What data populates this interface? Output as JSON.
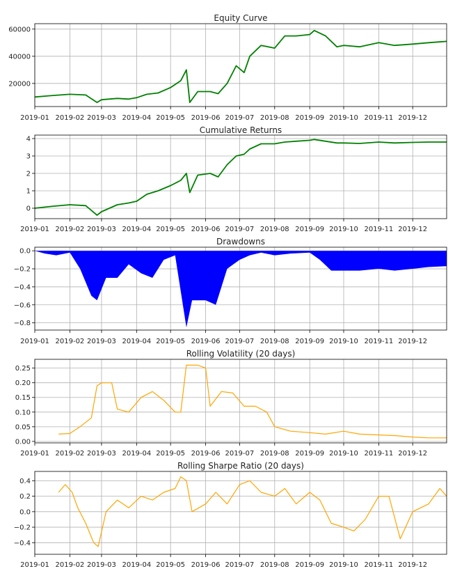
{
  "chart_data": [
    {
      "type": "line",
      "title": "Equity Curve",
      "xlabel": "",
      "ylabel": "",
      "x_ticks": [
        "2019-01",
        "2019-02",
        "2019-03",
        "2019-04",
        "2019-05",
        "2019-06",
        "2019-07",
        "2019-08",
        "2019-09",
        "2019-10",
        "2019-11",
        "2019-12"
      ],
      "y_ticks": [
        "20000",
        "40000",
        "60000"
      ],
      "xlim": [
        "2019-01-01",
        "2019-12-31"
      ],
      "ylim": [
        3000,
        64000
      ],
      "grid": true,
      "color": "#008000",
      "series": [
        {
          "x": [
            "2019-01-01",
            "2019-01-15",
            "2019-02-01",
            "2019-02-15",
            "2019-02-25",
            "2019-03-01",
            "2019-03-15",
            "2019-03-25",
            "2019-04-01",
            "2019-04-10",
            "2019-04-20",
            "2019-05-01",
            "2019-05-10",
            "2019-05-15",
            "2019-05-18",
            "2019-05-25",
            "2019-06-05",
            "2019-06-12",
            "2019-06-20",
            "2019-06-28",
            "2019-07-05",
            "2019-07-10",
            "2019-07-20",
            "2019-08-01",
            "2019-08-10",
            "2019-08-20",
            "2019-09-01",
            "2019-09-05",
            "2019-09-15",
            "2019-09-25",
            "2019-10-01",
            "2019-10-15",
            "2019-11-01",
            "2019-11-15",
            "2019-12-01",
            "2019-12-15",
            "2019-12-31"
          ],
          "y": [
            10000,
            11000,
            12000,
            11500,
            6000,
            8000,
            9000,
            8500,
            9500,
            12000,
            13000,
            17000,
            22000,
            30000,
            6000,
            14000,
            14000,
            12500,
            20000,
            33000,
            28000,
            40000,
            48000,
            46000,
            55000,
            55000,
            56000,
            59000,
            55000,
            47000,
            48000,
            47000,
            50000,
            48000,
            49000,
            50000,
            51000
          ]
        }
      ]
    },
    {
      "type": "line",
      "title": "Cumulative Returns",
      "xlabel": "",
      "ylabel": "",
      "x_ticks": [
        "2019-01",
        "2019-02",
        "2019-03",
        "2019-04",
        "2019-05",
        "2019-06",
        "2019-07",
        "2019-08",
        "2019-09",
        "2019-10",
        "2019-11",
        "2019-12"
      ],
      "y_ticks": [
        "0",
        "1",
        "2",
        "3",
        "4"
      ],
      "xlim": [
        "2019-01-01",
        "2019-12-31"
      ],
      "ylim": [
        -0.6,
        4.2
      ],
      "grid": true,
      "color": "#008000",
      "series": [
        {
          "x": [
            "2019-01-01",
            "2019-01-15",
            "2019-02-01",
            "2019-02-15",
            "2019-02-25",
            "2019-03-01",
            "2019-03-15",
            "2019-03-25",
            "2019-04-01",
            "2019-04-10",
            "2019-04-20",
            "2019-05-01",
            "2019-05-10",
            "2019-05-15",
            "2019-05-18",
            "2019-05-25",
            "2019-06-05",
            "2019-06-12",
            "2019-06-20",
            "2019-06-28",
            "2019-07-05",
            "2019-07-10",
            "2019-07-20",
            "2019-08-01",
            "2019-08-10",
            "2019-08-20",
            "2019-09-01",
            "2019-09-05",
            "2019-09-15",
            "2019-09-25",
            "2019-10-01",
            "2019-10-15",
            "2019-11-01",
            "2019-11-15",
            "2019-12-01",
            "2019-12-15",
            "2019-12-31"
          ],
          "y": [
            0,
            0.1,
            0.2,
            0.15,
            -0.4,
            -0.2,
            0.2,
            0.3,
            0.4,
            0.8,
            1.0,
            1.3,
            1.6,
            2.0,
            0.9,
            1.9,
            2.0,
            1.8,
            2.5,
            3.0,
            3.1,
            3.4,
            3.7,
            3.7,
            3.8,
            3.85,
            3.9,
            3.95,
            3.85,
            3.75,
            3.75,
            3.72,
            3.8,
            3.75,
            3.78,
            3.8,
            3.8
          ]
        }
      ]
    },
    {
      "type": "area",
      "title": "Drawdowns",
      "xlabel": "",
      "ylabel": "",
      "x_ticks": [
        "2019-01",
        "2019-02",
        "2019-03",
        "2019-04",
        "2019-05",
        "2019-06",
        "2019-07",
        "2019-08",
        "2019-09",
        "2019-10",
        "2019-11",
        "2019-12"
      ],
      "y_ticks": [
        "0.0",
        "−0.2",
        "−0.4",
        "−0.6",
        "−0.8"
      ],
      "xlim": [
        "2019-01-01",
        "2019-12-31"
      ],
      "ylim": [
        -0.88,
        0.04
      ],
      "grid": true,
      "color": "#0000ff",
      "series": [
        {
          "x": [
            "2019-01-01",
            "2019-01-10",
            "2019-01-20",
            "2019-02-01",
            "2019-02-10",
            "2019-02-20",
            "2019-02-25",
            "2019-03-05",
            "2019-03-15",
            "2019-03-25",
            "2019-04-05",
            "2019-04-15",
            "2019-04-25",
            "2019-05-05",
            "2019-05-15",
            "2019-05-20",
            "2019-06-01",
            "2019-06-10",
            "2019-06-20",
            "2019-07-01",
            "2019-07-10",
            "2019-07-20",
            "2019-08-01",
            "2019-08-15",
            "2019-09-01",
            "2019-09-10",
            "2019-09-20",
            "2019-10-01",
            "2019-10-15",
            "2019-11-01",
            "2019-11-15",
            "2019-12-01",
            "2019-12-15",
            "2019-12-31"
          ],
          "y": [
            0,
            -0.03,
            -0.05,
            -0.02,
            -0.2,
            -0.5,
            -0.55,
            -0.3,
            -0.3,
            -0.15,
            -0.25,
            -0.3,
            -0.1,
            -0.05,
            -0.85,
            -0.55,
            -0.55,
            -0.6,
            -0.2,
            -0.1,
            -0.05,
            -0.02,
            -0.05,
            -0.03,
            -0.02,
            -0.1,
            -0.22,
            -0.22,
            -0.22,
            -0.2,
            -0.22,
            -0.2,
            -0.18,
            -0.17
          ]
        }
      ]
    },
    {
      "type": "line",
      "title": "Rolling Volatility (20 days)",
      "xlabel": "",
      "ylabel": "",
      "x_ticks": [
        "2019-01",
        "2019-02",
        "2019-03",
        "2019-04",
        "2019-05",
        "2019-06",
        "2019-07",
        "2019-08",
        "2019-09",
        "2019-10",
        "2019-11",
        "2019-12"
      ],
      "y_ticks": [
        "0.00",
        "0.05",
        "0.10",
        "0.15",
        "0.20",
        "0.25"
      ],
      "xlim": [
        "2019-01-01",
        "2019-12-31"
      ],
      "ylim": [
        -0.005,
        0.28
      ],
      "grid": true,
      "color": "#ffa500",
      "series": [
        {
          "x": [
            "2019-01-22",
            "2019-02-01",
            "2019-02-10",
            "2019-02-20",
            "2019-02-25",
            "2019-03-01",
            "2019-03-10",
            "2019-03-15",
            "2019-03-25",
            "2019-04-05",
            "2019-04-15",
            "2019-04-25",
            "2019-05-05",
            "2019-05-10",
            "2019-05-15",
            "2019-05-25",
            "2019-06-01",
            "2019-06-05",
            "2019-06-15",
            "2019-06-25",
            "2019-07-05",
            "2019-07-15",
            "2019-07-25",
            "2019-08-01",
            "2019-08-15",
            "2019-09-01",
            "2019-09-15",
            "2019-10-01",
            "2019-10-15",
            "2019-11-01",
            "2019-11-15",
            "2019-12-01",
            "2019-12-15",
            "2019-12-31"
          ],
          "y": [
            0.025,
            0.027,
            0.05,
            0.08,
            0.19,
            0.2,
            0.2,
            0.11,
            0.1,
            0.15,
            0.17,
            0.14,
            0.1,
            0.1,
            0.26,
            0.26,
            0.25,
            0.12,
            0.17,
            0.165,
            0.12,
            0.12,
            0.1,
            0.05,
            0.035,
            0.03,
            0.025,
            0.035,
            0.025,
            0.022,
            0.02,
            0.015,
            0.012,
            0.012
          ]
        }
      ]
    },
    {
      "type": "line",
      "title": "Rolling Sharpe Ratio (20 days)",
      "xlabel": "",
      "ylabel": "",
      "x_ticks": [
        "2019-01",
        "2019-02",
        "2019-03",
        "2019-04",
        "2019-05",
        "2019-06",
        "2019-07",
        "2019-08",
        "2019-09",
        "2019-10",
        "2019-11",
        "2019-12"
      ],
      "y_ticks": [
        "−0.4",
        "−0.2",
        "0.0",
        "0.2",
        "0.4"
      ],
      "xlim": [
        "2019-01-01",
        "2019-12-31"
      ],
      "ylim": [
        -0.55,
        0.52
      ],
      "grid": true,
      "color": "#ffa500",
      "series": [
        {
          "x": [
            "2019-01-22",
            "2019-01-28",
            "2019-02-03",
            "2019-02-08",
            "2019-02-15",
            "2019-02-22",
            "2019-02-26",
            "2019-03-05",
            "2019-03-15",
            "2019-03-25",
            "2019-04-05",
            "2019-04-15",
            "2019-04-25",
            "2019-05-05",
            "2019-05-10",
            "2019-05-15",
            "2019-05-20",
            "2019-06-01",
            "2019-06-10",
            "2019-06-20",
            "2019-07-01",
            "2019-07-10",
            "2019-07-20",
            "2019-08-01",
            "2019-08-10",
            "2019-08-20",
            "2019-09-01",
            "2019-09-10",
            "2019-09-20",
            "2019-10-01",
            "2019-10-10",
            "2019-10-20",
            "2019-11-01",
            "2019-11-10",
            "2019-11-20",
            "2019-12-01",
            "2019-12-15",
            "2019-12-25",
            "2019-12-31"
          ],
          "y": [
            0.25,
            0.35,
            0.25,
            0.05,
            -0.15,
            -0.4,
            -0.45,
            0.0,
            0.15,
            0.05,
            0.2,
            0.15,
            0.25,
            0.3,
            0.45,
            0.4,
            0.0,
            0.1,
            0.25,
            0.1,
            0.35,
            0.4,
            0.25,
            0.2,
            0.3,
            0.1,
            0.25,
            0.15,
            -0.15,
            -0.2,
            -0.25,
            -0.1,
            0.2,
            0.2,
            -0.35,
            0.0,
            0.1,
            0.3,
            0.2
          ]
        }
      ]
    }
  ]
}
